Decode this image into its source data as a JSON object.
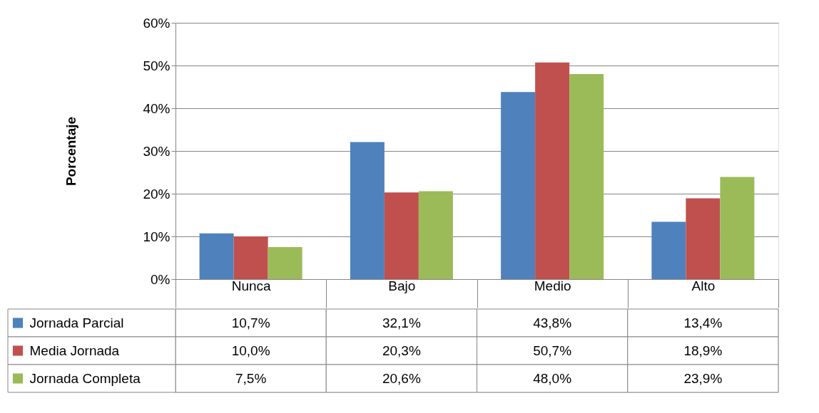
{
  "chart_data": {
    "type": "bar",
    "ylabel": "Porcentaje",
    "categories": [
      "Nunca",
      "Bajo",
      "Medio",
      "Alto"
    ],
    "series": [
      {
        "name": "Jornada Parcial",
        "color": "#4f81bd",
        "values": [
          10.7,
          32.1,
          43.8,
          13.4
        ],
        "value_labels": [
          "10,7%",
          "32,1%",
          "43,8%",
          "13,4%"
        ]
      },
      {
        "name": "Media Jornada",
        "color": "#c0504d",
        "values": [
          10.0,
          20.3,
          50.7,
          18.9
        ],
        "value_labels": [
          "10,0%",
          "20,3%",
          "50,7%",
          "18,9%"
        ]
      },
      {
        "name": "Jornada Completa",
        "color": "#9bbb59",
        "values": [
          7.5,
          20.6,
          48.0,
          23.9
        ],
        "value_labels": [
          "7,5%",
          "20,6%",
          "48,0%",
          "23,9%"
        ]
      }
    ],
    "ylim": [
      0,
      60
    ],
    "yticks": [
      {
        "value": 0,
        "label": "0%"
      },
      {
        "value": 10,
        "label": "10%"
      },
      {
        "value": 20,
        "label": "20%"
      },
      {
        "value": 30,
        "label": "30%"
      },
      {
        "value": 40,
        "label": "40%"
      },
      {
        "value": 50,
        "label": "50%"
      },
      {
        "value": 60,
        "label": "60%"
      }
    ],
    "grid": "y",
    "legend": "bottom left"
  }
}
